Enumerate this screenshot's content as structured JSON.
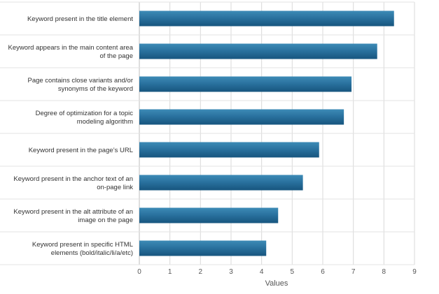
{
  "chart_data": {
    "type": "bar",
    "orientation": "horizontal",
    "categories": [
      [
        "Keyword present in the title element"
      ],
      [
        "Keyword appears in the main content area",
        "of the page"
      ],
      [
        "Page contains close variants and/or",
        "synonyms of the keyword"
      ],
      [
        "Degree of optimization for a topic",
        "modeling algorithm"
      ],
      [
        "Keyword present in the page’s URL"
      ],
      [
        "Keyword present in the anchor text of an",
        "on-page link"
      ],
      [
        "Keyword present in the alt attribute of an",
        "image on the page"
      ],
      [
        "Keyword present in specific HTML",
        "elements (bold/italic/li/a/etc)"
      ]
    ],
    "values": [
      8.33,
      7.78,
      6.94,
      6.69,
      5.88,
      5.35,
      4.54,
      4.15
    ],
    "xlabel": "Values",
    "ylabel": "",
    "xlim": [
      0,
      9
    ],
    "xticks": [
      "0",
      "1",
      "2",
      "3",
      "4",
      "5",
      "6",
      "7",
      "8",
      "9"
    ],
    "grid": true,
    "bar_color_top": "#3d8bb6",
    "bar_color_bottom": "#17557e"
  }
}
